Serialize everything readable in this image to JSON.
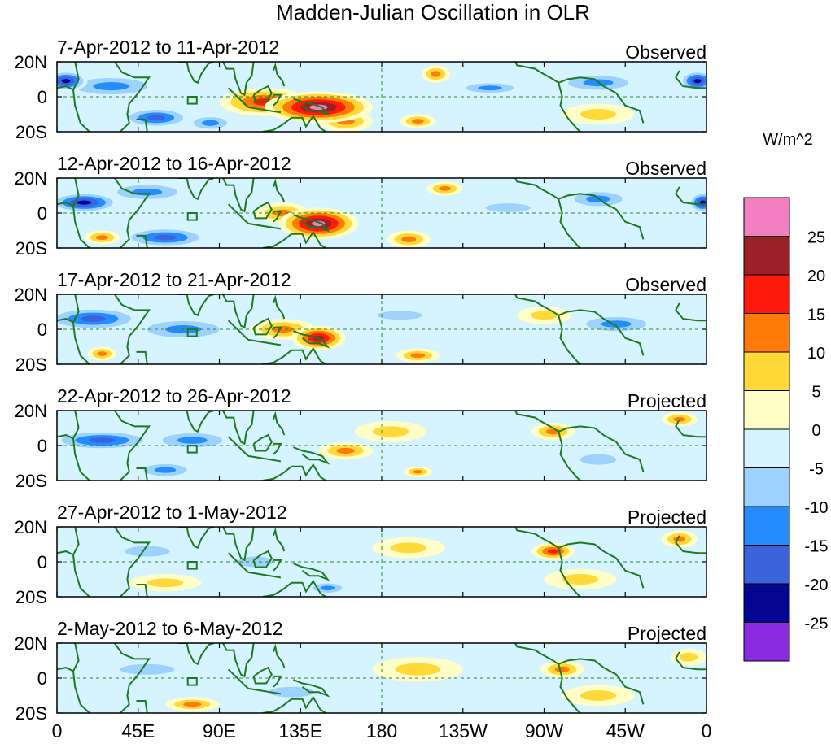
{
  "chart_data": {
    "type": "heatmap",
    "title": "Madden-Julian Oscillation in OLR",
    "colorbar": {
      "label": "W/m^2",
      "tick_labels": [
        "25",
        "20",
        "15",
        "10",
        "5",
        "0",
        "-5",
        "-10",
        "-15",
        "-20",
        "-25"
      ],
      "levels": [
        {
          "color": "#f37fc3",
          "range": [
            25,
            30
          ]
        },
        {
          "color": "#9c2127",
          "range": [
            20,
            25
          ]
        },
        {
          "color": "#ff1a0c",
          "range": [
            15,
            20
          ]
        },
        {
          "color": "#ff7a06",
          "range": [
            10,
            15
          ]
        },
        {
          "color": "#ffd938",
          "range": [
            5,
            10
          ]
        },
        {
          "color": "#fffec7",
          "range": [
            0,
            5
          ]
        },
        {
          "color": "#d5f4ff",
          "range": [
            -5,
            0
          ]
        },
        {
          "color": "#9dd2ff",
          "range": [
            -10,
            -5
          ]
        },
        {
          "color": "#248cff",
          "range": [
            -15,
            -10
          ]
        },
        {
          "color": "#3a63dc",
          "range": [
            -20,
            -15
          ]
        },
        {
          "color": "#030690",
          "range": [
            -25,
            -20
          ]
        },
        {
          "color": "#8a2be2",
          "range": [
            -30,
            -25
          ]
        }
      ]
    },
    "x_axis": {
      "tick_labels": [
        "0",
        "45E",
        "90E",
        "135E",
        "180",
        "135W",
        "90W",
        "45W",
        "0"
      ],
      "lon_range": [
        0,
        360
      ]
    },
    "y_axis": {
      "tick_labels": [
        "20N",
        "0",
        "20S"
      ],
      "lat_range": [
        -20,
        20
      ]
    },
    "panels": [
      {
        "period": "7-Apr-2012 to 11-Apr-2012",
        "status": "Observed",
        "anomalies": [
          {
            "lon": 5,
            "lat": 9,
            "value": -20,
            "rlon": 12,
            "rlat": 6
          },
          {
            "lon": 355,
            "lat": 9,
            "value": -20,
            "rlon": 10,
            "rlat": 6
          },
          {
            "lon": 30,
            "lat": 6,
            "value": -10,
            "rlon": 30,
            "rlat": 7
          },
          {
            "lon": 55,
            "lat": -12,
            "value": -15,
            "rlon": 20,
            "rlat": 6
          },
          {
            "lon": 85,
            "lat": -15,
            "value": -10,
            "rlon": 14,
            "rlat": 5
          },
          {
            "lon": 145,
            "lat": -6,
            "value": 27,
            "rlon": 30,
            "rlat": 9
          },
          {
            "lon": 115,
            "lat": -3,
            "value": 15,
            "rlon": 25,
            "rlat": 8
          },
          {
            "lon": 160,
            "lat": -14,
            "value": 10,
            "rlon": 15,
            "rlat": 6
          },
          {
            "lon": 210,
            "lat": 13,
            "value": 10,
            "rlon": 8,
            "rlat": 5
          },
          {
            "lon": 200,
            "lat": -14,
            "value": 10,
            "rlon": 10,
            "rlat": 4
          },
          {
            "lon": 240,
            "lat": 5,
            "value": -10,
            "rlon": 20,
            "rlat": 4
          },
          {
            "lon": 300,
            "lat": 8,
            "value": -10,
            "rlon": 25,
            "rlat": 6
          },
          {
            "lon": 300,
            "lat": -10,
            "value": 5,
            "rlon": 20,
            "rlat": 6
          }
        ]
      },
      {
        "period": "12-Apr-2012 to 16-Apr-2012",
        "status": "Observed",
        "anomalies": [
          {
            "lon": 15,
            "lat": 6,
            "value": -22,
            "rlon": 20,
            "rlat": 6
          },
          {
            "lon": 358,
            "lat": 6,
            "value": -20,
            "rlon": 8,
            "rlat": 6
          },
          {
            "lon": 50,
            "lat": 12,
            "value": -10,
            "rlon": 25,
            "rlat": 6
          },
          {
            "lon": 60,
            "lat": -14,
            "value": -15,
            "rlon": 25,
            "rlat": 6
          },
          {
            "lon": 145,
            "lat": -6,
            "value": 26,
            "rlon": 22,
            "rlat": 9
          },
          {
            "lon": 125,
            "lat": 0,
            "value": 10,
            "rlon": 15,
            "rlat": 6
          },
          {
            "lon": 195,
            "lat": -15,
            "value": 12,
            "rlon": 12,
            "rlat": 5
          },
          {
            "lon": 215,
            "lat": 14,
            "value": 10,
            "rlon": 10,
            "rlat": 4
          },
          {
            "lon": 25,
            "lat": -14,
            "value": 10,
            "rlon": 10,
            "rlat": 4
          },
          {
            "lon": 250,
            "lat": 3,
            "value": -8,
            "rlon": 25,
            "rlat": 5
          },
          {
            "lon": 300,
            "lat": 8,
            "value": -10,
            "rlon": 20,
            "rlat": 6
          }
        ]
      },
      {
        "period": "17-Apr-2012 to 21-Apr-2012",
        "status": "Observed",
        "anomalies": [
          {
            "lon": 20,
            "lat": 6,
            "value": -15,
            "rlon": 28,
            "rlat": 7
          },
          {
            "lon": 70,
            "lat": 0,
            "value": -10,
            "rlon": 30,
            "rlat": 7
          },
          {
            "lon": 145,
            "lat": -5,
            "value": 20,
            "rlon": 15,
            "rlat": 7
          },
          {
            "lon": 125,
            "lat": 0,
            "value": 10,
            "rlon": 18,
            "rlat": 6
          },
          {
            "lon": 200,
            "lat": -15,
            "value": 12,
            "rlon": 12,
            "rlat": 4
          },
          {
            "lon": 25,
            "lat": -14,
            "value": 12,
            "rlon": 8,
            "rlat": 4
          },
          {
            "lon": 190,
            "lat": 8,
            "value": -5,
            "rlon": 25,
            "rlat": 5
          },
          {
            "lon": 270,
            "lat": 8,
            "value": 8,
            "rlon": 15,
            "rlat": 5
          },
          {
            "lon": 310,
            "lat": 3,
            "value": -10,
            "rlon": 25,
            "rlat": 6
          }
        ]
      },
      {
        "period": "22-Apr-2012 to 26-Apr-2012",
        "status": "Projected",
        "anomalies": [
          {
            "lon": 25,
            "lat": 3,
            "value": -15,
            "rlon": 30,
            "rlat": 6
          },
          {
            "lon": 75,
            "lat": 3,
            "value": -12,
            "rlon": 25,
            "rlat": 6
          },
          {
            "lon": 60,
            "lat": -14,
            "value": -12,
            "rlon": 18,
            "rlat": 5
          },
          {
            "lon": 160,
            "lat": -3,
            "value": 12,
            "rlon": 15,
            "rlat": 5
          },
          {
            "lon": 200,
            "lat": -15,
            "value": 10,
            "rlon": 8,
            "rlat": 3
          },
          {
            "lon": 185,
            "lat": 8,
            "value": 5,
            "rlon": 20,
            "rlat": 6
          },
          {
            "lon": 275,
            "lat": 8,
            "value": 12,
            "rlon": 12,
            "rlat": 5
          },
          {
            "lon": 345,
            "lat": 15,
            "value": 10,
            "rlon": 10,
            "rlat": 4
          },
          {
            "lon": 300,
            "lat": -8,
            "value": -8,
            "rlon": 20,
            "rlat": 6
          }
        ]
      },
      {
        "period": "27-Apr-2012 to 1-May-2012",
        "status": "Projected",
        "anomalies": [
          {
            "lon": 50,
            "lat": 6,
            "value": -8,
            "rlon": 25,
            "rlat": 6
          },
          {
            "lon": 60,
            "lat": -12,
            "value": 8,
            "rlon": 20,
            "rlat": 5
          },
          {
            "lon": 110,
            "lat": 0,
            "value": -8,
            "rlon": 20,
            "rlat": 6
          },
          {
            "lon": 150,
            "lat": -15,
            "value": -10,
            "rlon": 12,
            "rlat": 4
          },
          {
            "lon": 195,
            "lat": 8,
            "value": 8,
            "rlon": 20,
            "rlat": 6
          },
          {
            "lon": 275,
            "lat": 6,
            "value": 15,
            "rlon": 12,
            "rlat": 5
          },
          {
            "lon": 345,
            "lat": 13,
            "value": 12,
            "rlon": 10,
            "rlat": 5
          },
          {
            "lon": 290,
            "lat": -10,
            "value": 5,
            "rlon": 20,
            "rlat": 6
          }
        ]
      },
      {
        "period": "2-May-2012 to 6-May-2012",
        "status": "Projected",
        "anomalies": [
          {
            "lon": 50,
            "lat": 5,
            "value": -8,
            "rlon": 30,
            "rlat": 6
          },
          {
            "lon": 75,
            "lat": -15,
            "value": 10,
            "rlon": 15,
            "rlat": 4
          },
          {
            "lon": 130,
            "lat": -8,
            "value": -8,
            "rlon": 25,
            "rlat": 6
          },
          {
            "lon": 200,
            "lat": 5,
            "value": 8,
            "rlon": 25,
            "rlat": 7
          },
          {
            "lon": 280,
            "lat": 5,
            "value": 12,
            "rlon": 12,
            "rlat": 5
          },
          {
            "lon": 350,
            "lat": 12,
            "value": 8,
            "rlon": 10,
            "rlat": 5
          },
          {
            "lon": 300,
            "lat": -10,
            "value": 5,
            "rlon": 20,
            "rlat": 6
          }
        ]
      }
    ]
  }
}
